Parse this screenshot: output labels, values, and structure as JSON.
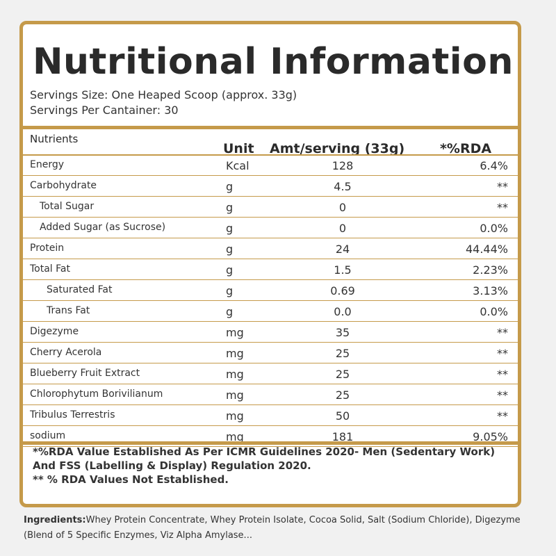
{
  "title": "Nutritional Information",
  "serving_size": "Servings Size: One Heaped Scoop (approx. 33g)",
  "servings_per_container": "Servings Per Cantainer: 30",
  "headers": {
    "nutrients": "Nutrients",
    "unit": "Unit",
    "amount": "Amt/serving (33g)",
    "rda": "*%RDA"
  },
  "rows": [
    {
      "name": "Energy",
      "unit": "Kcal",
      "amount": "128",
      "rda": "6.4%"
    },
    {
      "name": "Carbohydrate",
      "unit": "g",
      "amount": "4.5",
      "rda": "**"
    },
    {
      "name": "Total Sugar",
      "unit": "g",
      "amount": "0",
      "rda": "**"
    },
    {
      "name": "Added Sugar (as Sucrose)",
      "unit": "g",
      "amount": "0",
      "rda": "0.0%"
    },
    {
      "name": "Protein",
      "unit": "g",
      "amount": "24",
      "rda": "44.44%"
    },
    {
      "name": "Total Fat",
      "unit": "g",
      "amount": "1.5",
      "rda": "2.23%"
    },
    {
      "name": "Saturated Fat",
      "unit": "g",
      "amount": "0.69",
      "rda": "3.13%"
    },
    {
      "name": "Trans Fat",
      "unit": "g",
      "amount": "0.0",
      "rda": "0.0%"
    },
    {
      "name": "Digezyme",
      "unit": "mg",
      "amount": "35",
      "rda": "**"
    },
    {
      "name": "Cherry Acerola",
      "unit": "mg",
      "amount": "25",
      "rda": "**"
    },
    {
      "name": "Blueberry Fruit Extract",
      "unit": "mg",
      "amount": "25",
      "rda": "**"
    },
    {
      "name": "Chlorophytum Borivilianum",
      "unit": "mg",
      "amount": "25",
      "rda": "**"
    },
    {
      "name": "Tribulus Terrestris",
      "unit": "mg",
      "amount": "50",
      "rda": "**"
    },
    {
      "name": "sodium",
      "unit": "mg",
      "amount": "181",
      "rda": "9.05%"
    }
  ],
  "footnote_1": "*%RDA Value Established As Per ICMR Guidelines 2020- Men (Sedentary Work) And FSS (Labelling & Display) Regulation 2020.",
  "footnote_2": "** % RDA Values Not Established.",
  "ingredients_label": "Ingredients:",
  "ingredients_text": "Whey Protein Concentrate, Whey Protein Isolate, Cocoa Solid, Salt (Sodium Chloride), Digezyme (Blend of 5 Specific Enzymes, Viz Alpha Amylase..."
}
